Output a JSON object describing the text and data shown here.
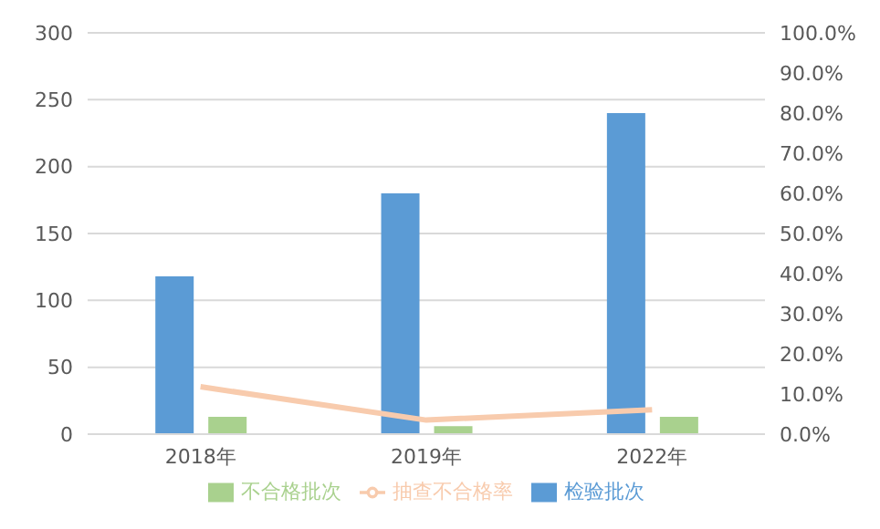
{
  "chart_data": {
    "type": "bar",
    "categories": [
      "2018年",
      "2019年",
      "2022年"
    ],
    "series": [
      {
        "name": "检验批次",
        "color": "#5b9bd5",
        "values": [
          118,
          180,
          240
        ]
      },
      {
        "name": "不合格批次",
        "color": "#a9d18e",
        "values": [
          13,
          6,
          13
        ]
      },
      {
        "name": "抽查不合格率",
        "type": "line",
        "axis": "y2",
        "color": "#f8cbad",
        "values": [
          11.8,
          3.5,
          6.1
        ]
      }
    ],
    "ylim": [
      0,
      300
    ],
    "yticks": [
      0,
      50,
      100,
      150,
      200,
      250,
      300
    ],
    "y2lim": [
      0,
      100
    ],
    "y2ticks": [
      {
        "value": 0,
        "label": "0.0%"
      },
      {
        "value": 10,
        "label": "10.0%"
      },
      {
        "value": 20,
        "label": "20.0%"
      },
      {
        "value": 30,
        "label": "30.0%"
      },
      {
        "value": 40,
        "label": "40.0%"
      },
      {
        "value": 50,
        "label": "50.0%"
      },
      {
        "value": 60,
        "label": "60.0%"
      },
      {
        "value": 70,
        "label": "70.0%"
      },
      {
        "value": 80,
        "label": "80.0%"
      },
      {
        "value": 90,
        "label": "90.0%"
      },
      {
        "value": 100,
        "label": "100.0%"
      }
    ],
    "grid": "y",
    "legend": "bottom",
    "marker": "none"
  }
}
